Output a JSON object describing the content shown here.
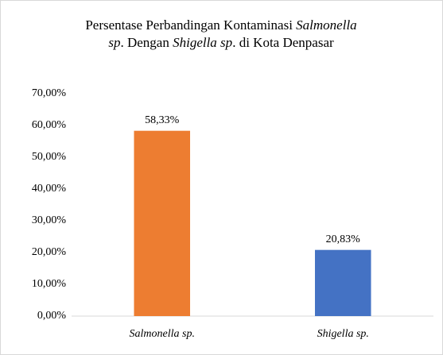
{
  "chart_data": {
    "type": "bar",
    "title": [
      [
        {
          "text": "Persentase Perbandingan Kontaminasi ",
          "italic": false
        },
        {
          "text": "Salmonella",
          "italic": true
        }
      ],
      [
        {
          "text": "sp",
          "italic": true
        },
        {
          "text": ". Dengan ",
          "italic": false
        },
        {
          "text": "Shigella sp",
          "italic": true
        },
        {
          "text": ". di Kota Denpasar",
          "italic": false
        }
      ]
    ],
    "categories": [
      "Salmonella sp.",
      "Shigella sp."
    ],
    "categories_italic": true,
    "series": [
      {
        "colors": [
          "#ed7d31",
          "#4472c4"
        ],
        "values": [
          58.33,
          20.83
        ],
        "value_labels": [
          "58,33%",
          "20,83%"
        ]
      }
    ],
    "ylim": [
      0,
      70
    ],
    "yticks": [
      {
        "value": 0,
        "label": "0,00%"
      },
      {
        "value": 10,
        "label": "10,00%"
      },
      {
        "value": 20,
        "label": "20,00%"
      },
      {
        "value": 30,
        "label": "30,00%"
      },
      {
        "value": 40,
        "label": "40,00%"
      },
      {
        "value": 50,
        "label": "50,00%"
      },
      {
        "value": 60,
        "label": "60,00%"
      },
      {
        "value": 70,
        "label": "70,00%"
      }
    ],
    "grid": false
  }
}
